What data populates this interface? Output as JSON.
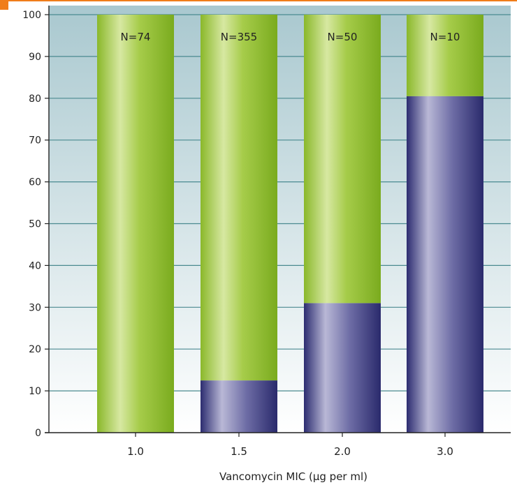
{
  "chart_data": {
    "type": "bar",
    "stacked": true,
    "categories": [
      "1.0",
      "1.5",
      "2.0",
      "3.0"
    ],
    "series": [
      {
        "values": [
          0,
          12.5,
          31,
          80.5
        ],
        "color": "#3a3a80"
      },
      {
        "values": [
          100,
          87.5,
          69,
          19.5
        ],
        "color": "#8fbf2a"
      }
    ],
    "annotations": [
      "N=74",
      "N=355",
      "N=50",
      "N=10"
    ],
    "xlabel": "Vancomycin MIC (µg per ml)",
    "ylabel": "",
    "ylim": [
      0,
      100
    ],
    "yticks": [
      0,
      10,
      20,
      30,
      40,
      50,
      60,
      70,
      80,
      90,
      100
    ],
    "grid": true,
    "background": {
      "top": "#a9c8cf",
      "bottom": "#ffffff"
    }
  }
}
